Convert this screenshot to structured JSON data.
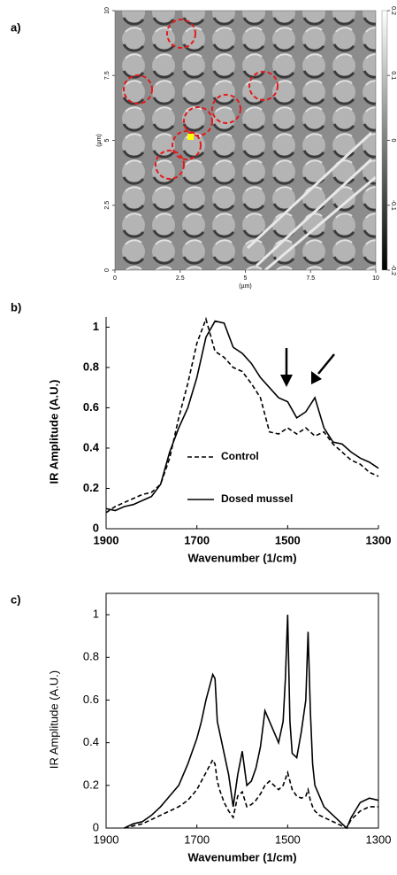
{
  "chart_data": [
    {
      "type": "image",
      "panel_label": "a)",
      "xlabel": "(µm)",
      "ylabel": "(µm)",
      "xlim": [
        0,
        10
      ],
      "ylim": [
        0,
        10
      ],
      "xticks": [
        0,
        2.5,
        5,
        7.5,
        10
      ],
      "yticks": [
        0,
        2.5,
        5,
        7.5,
        10
      ],
      "clim": [
        -0.2,
        0.2
      ],
      "cticks": [
        0.2,
        0.1,
        0,
        -0.1,
        -0.2
      ]
    },
    {
      "type": "line",
      "panel_label": "b)",
      "xlabel": "Wavenumber (1/cm)",
      "ylabel": "IR Amplitude (A.U.)",
      "xlim": [
        1900,
        1300
      ],
      "ylim": [
        0,
        1.05
      ],
      "xticks": [
        1900,
        1700,
        1500,
        1300
      ],
      "yticks": [
        0,
        0.2,
        0.4,
        0.6,
        0.8,
        1
      ],
      "legend": "center",
      "frame": false,
      "x": [
        1900,
        1880,
        1860,
        1840,
        1820,
        1800,
        1780,
        1760,
        1740,
        1720,
        1700,
        1680,
        1660,
        1640,
        1620,
        1600,
        1580,
        1560,
        1540,
        1520,
        1500,
        1480,
        1460,
        1440,
        1420,
        1400,
        1380,
        1360,
        1340,
        1320,
        1300
      ],
      "series": [
        {
          "name": "Control",
          "color": "#000000",
          "dash": true,
          "values": [
            0.08,
            0.11,
            0.13,
            0.15,
            0.17,
            0.18,
            0.22,
            0.35,
            0.55,
            0.72,
            0.92,
            1.04,
            0.88,
            0.85,
            0.8,
            0.78,
            0.72,
            0.65,
            0.48,
            0.47,
            0.5,
            0.47,
            0.5,
            0.46,
            0.48,
            0.42,
            0.38,
            0.34,
            0.32,
            0.28,
            0.26
          ]
        },
        {
          "name": "Dosed mussel",
          "color": "#000000",
          "dash": false,
          "values": [
            0.1,
            0.09,
            0.11,
            0.12,
            0.14,
            0.16,
            0.22,
            0.38,
            0.5,
            0.6,
            0.75,
            0.95,
            1.03,
            1.02,
            0.9,
            0.87,
            0.82,
            0.75,
            0.7,
            0.65,
            0.63,
            0.55,
            0.58,
            0.65,
            0.5,
            0.43,
            0.42,
            0.38,
            0.35,
            0.33,
            0.3
          ]
        }
      ]
    },
    {
      "type": "line",
      "panel_label": "c)",
      "xlabel": "Wavenumber (1/cm)",
      "ylabel": "IR Amplitude (A.U.)",
      "xlim": [
        1900,
        1300
      ],
      "ylim": [
        0,
        1.1
      ],
      "xticks": [
        1900,
        1700,
        1500,
        1300
      ],
      "yticks": [
        0,
        0.2,
        0.4,
        0.6,
        0.8,
        1
      ],
      "frame": true,
      "x": [
        1860,
        1840,
        1820,
        1800,
        1780,
        1760,
        1740,
        1720,
        1700,
        1690,
        1680,
        1670,
        1665,
        1660,
        1655,
        1650,
        1640,
        1630,
        1620,
        1610,
        1600,
        1590,
        1580,
        1570,
        1560,
        1550,
        1540,
        1530,
        1520,
        1510,
        1505,
        1500,
        1495,
        1490,
        1480,
        1470,
        1460,
        1455,
        1450,
        1445,
        1440,
        1430,
        1420,
        1400,
        1380,
        1370,
        1360,
        1340,
        1320,
        1300
      ],
      "series": [
        {
          "color": "#000000",
          "dash": true,
          "values": [
            0,
            0.01,
            0.02,
            0.04,
            0.06,
            0.08,
            0.1,
            0.13,
            0.18,
            0.22,
            0.26,
            0.3,
            0.32,
            0.3,
            0.22,
            0.18,
            0.12,
            0.08,
            0.05,
            0.15,
            0.17,
            0.1,
            0.11,
            0.13,
            0.16,
            0.2,
            0.22,
            0.2,
            0.18,
            0.2,
            0.23,
            0.26,
            0.22,
            0.18,
            0.15,
            0.14,
            0.15,
            0.18,
            0.13,
            0.1,
            0.08,
            0.06,
            0.05,
            0.03,
            0.01,
            0,
            0.04,
            0.08,
            0.1,
            0.1
          ]
        },
        {
          "color": "#000000",
          "dash": false,
          "values": [
            0,
            0.02,
            0.03,
            0.06,
            0.1,
            0.15,
            0.2,
            0.3,
            0.42,
            0.5,
            0.6,
            0.68,
            0.72,
            0.7,
            0.5,
            0.45,
            0.35,
            0.25,
            0.1,
            0.25,
            0.36,
            0.2,
            0.22,
            0.28,
            0.38,
            0.55,
            0.5,
            0.45,
            0.4,
            0.5,
            0.7,
            1.0,
            0.5,
            0.35,
            0.33,
            0.45,
            0.6,
            0.92,
            0.55,
            0.3,
            0.2,
            0.15,
            0.1,
            0.06,
            0.02,
            0,
            0.05,
            0.12,
            0.14,
            0.13
          ]
        }
      ]
    }
  ]
}
